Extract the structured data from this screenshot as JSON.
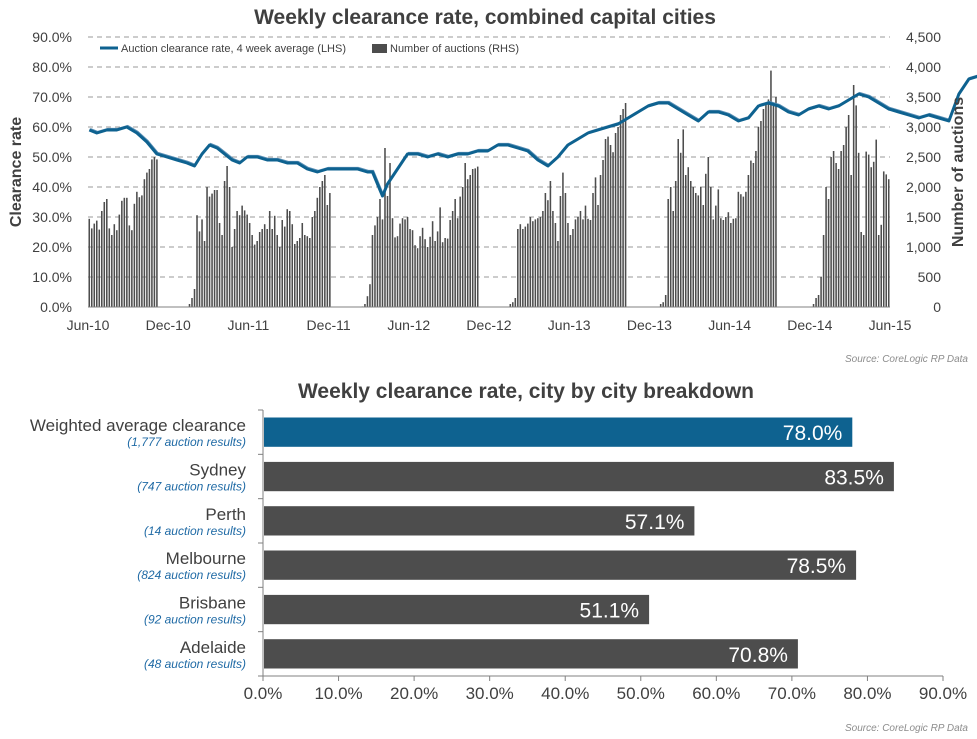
{
  "colors": {
    "line": "#0e6290",
    "line_thin": "#5b8fb5",
    "bars_top": "#4d4d4d",
    "highlight": "#0e6290",
    "bar_gray": "#4d4d4d",
    "source": "#8c8c8c",
    "results": "#1f6aa5"
  },
  "chart_data": [
    {
      "type": "line",
      "title": "Weekly clearance rate, combined capital cities",
      "ylabel": "Clearance rate",
      "y2label": "Number of auctions",
      "ylim": [
        0,
        90
      ],
      "y2lim": [
        0,
        4500
      ],
      "grid": true,
      "legend_position": "top-left",
      "x_ticks": [
        "Jun-10",
        "Dec-10",
        "Jun-11",
        "Dec-11",
        "Jun-12",
        "Dec-12",
        "Jun-13",
        "Dec-13",
        "Jun-14",
        "Dec-14",
        "Jun-15"
      ],
      "y_ticks": [
        "0.0%",
        "10.0%",
        "20.0%",
        "30.0%",
        "40.0%",
        "50.0%",
        "60.0%",
        "70.0%",
        "80.0%",
        "90.0%"
      ],
      "y2_ticks": [
        "0",
        "500",
        "1,000",
        "1,500",
        "2,000",
        "2,500",
        "3,000",
        "3,500",
        "4,000",
        "4,500"
      ],
      "source": "Source: CoreLogic RP Data",
      "series": [
        {
          "name": "Auction clearance rate, 4 week average (LHS)",
          "axis": "left",
          "points": [
            [
              0,
              59
            ],
            [
              3,
              58
            ],
            [
              7,
              59
            ],
            [
              11,
              59
            ],
            [
              15,
              60
            ],
            [
              19,
              58
            ],
            [
              23,
              55
            ],
            [
              27,
              51
            ],
            [
              31,
              50
            ],
            [
              35,
              49
            ],
            [
              39,
              48
            ],
            [
              42,
              47
            ],
            [
              45,
              51
            ],
            [
              48,
              54
            ],
            [
              51,
              53
            ],
            [
              54,
              51
            ],
            [
              57,
              49
            ],
            [
              60,
              48
            ],
            [
              63,
              50
            ],
            [
              67,
              50
            ],
            [
              71,
              49
            ],
            [
              75,
              49
            ],
            [
              79,
              48
            ],
            [
              83,
              48
            ],
            [
              87,
              46
            ],
            [
              91,
              45
            ],
            [
              95,
              46
            ],
            [
              99,
              46
            ],
            [
              103,
              46
            ],
            [
              107,
              46
            ],
            [
              111,
              45
            ],
            [
              113,
              45
            ],
            [
              117,
              37
            ],
            [
              119,
              41
            ],
            [
              123,
              46
            ],
            [
              127,
              51
            ],
            [
              131,
              51
            ],
            [
              135,
              50
            ],
            [
              139,
              51
            ],
            [
              143,
              50
            ],
            [
              147,
              51
            ],
            [
              151,
              51
            ],
            [
              155,
              52
            ],
            [
              159,
              52
            ],
            [
              163,
              54
            ],
            [
              167,
              54
            ],
            [
              171,
              53
            ],
            [
              175,
              52
            ],
            [
              179,
              49
            ],
            [
              183,
              47
            ],
            [
              187,
              50
            ],
            [
              191,
              54
            ],
            [
              195,
              56
            ],
            [
              199,
              58
            ],
            [
              203,
              59
            ],
            [
              207,
              60
            ],
            [
              211,
              61
            ],
            [
              215,
              63
            ],
            [
              219,
              65
            ],
            [
              223,
              67
            ],
            [
              227,
              68
            ],
            [
              231,
              68
            ],
            [
              235,
              66
            ],
            [
              239,
              64
            ],
            [
              243,
              62
            ],
            [
              247,
              65
            ],
            [
              251,
              65
            ],
            [
              255,
              64
            ],
            [
              259,
              62
            ],
            [
              263,
              63
            ],
            [
              267,
              67
            ],
            [
              271,
              68
            ],
            [
              275,
              67
            ],
            [
              279,
              65
            ],
            [
              283,
              64
            ],
            [
              287,
              66
            ],
            [
              291,
              67
            ],
            [
              295,
              66
            ],
            [
              299,
              67
            ],
            [
              303,
              69
            ],
            [
              307,
              71
            ],
            [
              311,
              70
            ],
            [
              315,
              68
            ],
            [
              319,
              66
            ],
            [
              323,
              65
            ],
            [
              327,
              64
            ],
            [
              331,
              63
            ],
            [
              335,
              64
            ],
            [
              339,
              63
            ],
            [
              343,
              62
            ],
            [
              347,
              71
            ],
            [
              351,
              76
            ],
            [
              355,
              77
            ],
            [
              359,
              78
            ],
            [
              363,
              79
            ],
            [
              367,
              80
            ],
            [
              371,
              79
            ],
            [
              375,
              78
            ],
            [
              379,
              78
            ],
            [
              381,
              77
            ]
          ]
        },
        {
          "name": "Number of auctions (RHS)",
          "axis": "right",
          "type": "bar",
          "values": [
            1470,
            1310,
            1390,
            1440,
            1290,
            1600,
            1750,
            1800,
            1310,
            1200,
            1380,
            1280,
            1540,
            1770,
            1820,
            1820,
            1360,
            1280,
            1720,
            1920,
            1830,
            1860,
            2130,
            2240,
            2300,
            2460,
            2500,
            2460,
            0,
            0,
            0,
            0,
            0,
            0,
            0,
            0,
            0,
            0,
            0,
            0,
            50,
            150,
            300,
            1530,
            1260,
            1460,
            1100,
            2000,
            1840,
            1890,
            1950,
            1950,
            1400,
            1200,
            2100,
            2350,
            2000,
            1000,
            1300,
            1600,
            1530,
            1690,
            1610,
            1540,
            1400,
            1200,
            1040,
            1100,
            1250,
            1300,
            1380,
            1300,
            1600,
            1300,
            1520,
            1200,
            1000,
            1450,
            1340,
            1630,
            1600,
            1380,
            1050,
            1100,
            1150,
            1400,
            1200,
            1180,
            1150,
            1500,
            1600,
            1820,
            2000,
            2100,
            2200,
            1700,
            1900,
            0,
            0,
            0,
            0,
            0,
            0,
            0,
            0,
            0,
            0,
            0,
            0,
            10,
            50,
            180,
            380,
            1200,
            1360,
            1500,
            1800,
            1460,
            2650,
            1850,
            2400,
            1480,
            1160,
            1180,
            1390,
            1480,
            1460,
            1500,
            1300,
            1280,
            1030,
            980,
            1180,
            1320,
            1130,
            1000,
            1170,
            1430,
            1100,
            1260,
            1660,
            1080,
            1150,
            1140,
            1450,
            1600,
            1800,
            1480,
            1840,
            2000,
            2400,
            2130,
            2200,
            2300,
            2310,
            2340,
            0,
            0,
            0,
            0,
            0,
            0,
            0,
            0,
            0,
            0,
            0,
            0,
            50,
            80,
            150,
            1300,
            1380,
            1300,
            1340,
            1390,
            1500,
            1430,
            1460,
            1480,
            1500,
            1600,
            1900,
            1780,
            2100,
            1600,
            1400,
            1100,
            1850,
            2240,
            1900,
            1400,
            1200,
            1300,
            1460,
            1500,
            1600,
            1460,
            1690,
            1470,
            1450,
            1900,
            2160,
            1700,
            2200,
            2450,
            2800,
            2840,
            2700,
            2580,
            2900,
            3000,
            3200,
            3300,
            3400,
            0,
            0,
            0,
            0,
            0,
            0,
            0,
            0,
            0,
            0,
            0,
            0,
            0,
            50,
            80,
            200,
            1800,
            2000,
            1600,
            2100,
            2800,
            2570,
            2960,
            2200,
            2330,
            2100,
            2000,
            1900,
            1860,
            2000,
            1700,
            2220,
            2500,
            2000,
            1460,
            1690,
            1960,
            1480,
            1450,
            1500,
            1580,
            1400,
            1470,
            1480,
            1920,
            1880,
            1840,
            1920,
            2200,
            2440,
            2400,
            2600,
            3000,
            3100,
            3300,
            3400,
            3460,
            3940,
            3400,
            3500,
            0,
            0,
            0,
            0,
            0,
            0,
            0,
            0,
            0,
            0,
            0,
            0,
            0,
            0,
            50,
            150,
            200,
            500,
            1200,
            2000,
            1800,
            2500,
            2600,
            2400,
            2300,
            2600,
            2700,
            3000,
            3200,
            2200,
            3700,
            3360,
            2570,
            1250,
            1200,
            2590,
            2540,
            2330,
            2420,
            2790,
            1200,
            1370,
            2260,
            2210,
            2130
          ]
        }
      ]
    },
    {
      "type": "bar",
      "orientation": "horizontal",
      "title": "Weekly clearance rate, city by city breakdown",
      "xlim": [
        0,
        90
      ],
      "x_ticks": [
        "0.0%",
        "10.0%",
        "20.0%",
        "30.0%",
        "40.0%",
        "50.0%",
        "60.0%",
        "70.0%",
        "80.0%",
        "90.0%"
      ],
      "source": "Source: CoreLogic  RP Data",
      "categories": [
        {
          "name": "Weighted average clearance",
          "results": "(1,777 auction results)",
          "value": 78.0,
          "label": "78.0%",
          "highlight": true
        },
        {
          "name": "Sydney",
          "results": "(747 auction results)",
          "value": 83.5,
          "label": "83.5%",
          "highlight": false
        },
        {
          "name": "Perth",
          "results": "(14 auction results)",
          "value": 57.1,
          "label": "57.1%",
          "highlight": false
        },
        {
          "name": "Melbourne",
          "results": "(824 auction results)",
          "value": 78.5,
          "label": "78.5%",
          "highlight": false
        },
        {
          "name": "Brisbane",
          "results": "(92 auction results)",
          "value": 51.1,
          "label": "51.1%",
          "highlight": false
        },
        {
          "name": "Adelaide",
          "results": "(48 auction results)",
          "value": 70.8,
          "label": "70.8%",
          "highlight": false
        }
      ]
    }
  ]
}
